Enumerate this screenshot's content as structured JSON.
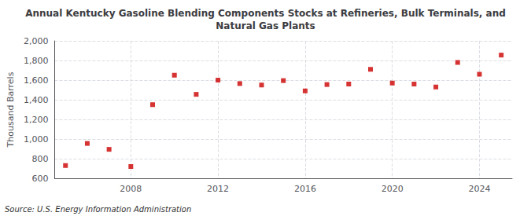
{
  "chart_data": {
    "type": "scatter",
    "title": "Annual Kentucky Gasoline Blending Components Stocks at Refineries, Bulk Terminals, and\nNatural Gas Plants",
    "ylabel": "Thousand Barrels",
    "annotation": "Source: U.S. Energy Information Administration",
    "x": [
      2005,
      2006,
      2007,
      2008,
      2009,
      2010,
      2011,
      2012,
      2013,
      2014,
      2015,
      2016,
      2017,
      2018,
      2019,
      2020,
      2021,
      2022,
      2023,
      2024,
      2025
    ],
    "values": [
      730,
      955,
      895,
      720,
      1350,
      1650,
      1455,
      1600,
      1565,
      1550,
      1595,
      1490,
      1555,
      1560,
      1710,
      1570,
      1560,
      1530,
      1780,
      1660,
      1855
    ],
    "color": "#cc0000",
    "marker": "square",
    "xlim": [
      2004.5,
      2025.5
    ],
    "xticks": [
      2008,
      2012,
      2016,
      2020,
      2024
    ],
    "ylim": [
      600,
      2000
    ],
    "yticks": [
      600,
      800,
      {
        "value": 1000,
        "label": "1,000"
      },
      {
        "value": 1200,
        "label": "1,200"
      },
      {
        "value": 1400,
        "label": "1,400"
      },
      {
        "value": 1600,
        "label": "1,600"
      },
      {
        "value": 1800,
        "label": "1,800"
      },
      {
        "value": 2000,
        "label": "2,000"
      }
    ],
    "grid": true
  }
}
